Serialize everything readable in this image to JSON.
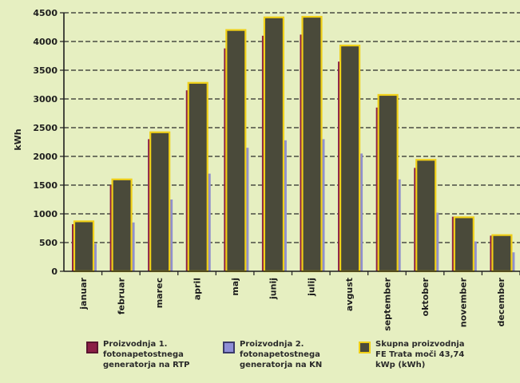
{
  "chart_data": {
    "type": "bar",
    "ylabel": "kWh",
    "ylim": [
      0,
      4500
    ],
    "yticks": [
      0,
      500,
      1000,
      1500,
      2000,
      2500,
      3000,
      3500,
      4000,
      4500
    ],
    "grid": "dashed-horizontal",
    "categories": [
      "januar",
      "februar",
      "marec",
      "april",
      "maj",
      "junij",
      "julij",
      "avgust",
      "september",
      "oktober",
      "november",
      "december"
    ],
    "series": [
      {
        "name": "Proizvodnja 1. fotonapetostnega generatorja na RTP",
        "color": "#8b1f45",
        "values": [
          820,
          1500,
          2300,
          3150,
          3880,
          4100,
          4120,
          3650,
          2850,
          1800,
          950,
          620
        ]
      },
      {
        "name": "Proizvodnja 2. fotonapetostnega generatorja na KN",
        "color": "#9090cc",
        "values": [
          480,
          850,
          1250,
          1700,
          2150,
          2280,
          2300,
          2050,
          1600,
          1020,
          520,
          330
        ]
      },
      {
        "name": "Skupna proizvodnja FE Trata moči 43,74 kWp (kWh)",
        "color": "#4a4a3a",
        "border": "#f0d018",
        "values": [
          870,
          1600,
          2420,
          3280,
          4200,
          4420,
          4430,
          3930,
          3070,
          1940,
          940,
          630
        ]
      }
    ]
  },
  "legend": [
    {
      "label": "Proizvodnja 1.\nfotonapetostnega\ngeneratorja na RTP",
      "color": "#8b1f45",
      "border": "#5a1530"
    },
    {
      "label": "Proizvodnja 2.\nfotonapetostnega\ngeneratorja na KN",
      "color": "#8e8ed6",
      "border": "#3a3a6a"
    },
    {
      "label": "Skupna proizvodnja\nFE Trata moči 43,74\nkWp (kWh)",
      "color": "#4a4a3a",
      "border": "#f0d018"
    }
  ]
}
